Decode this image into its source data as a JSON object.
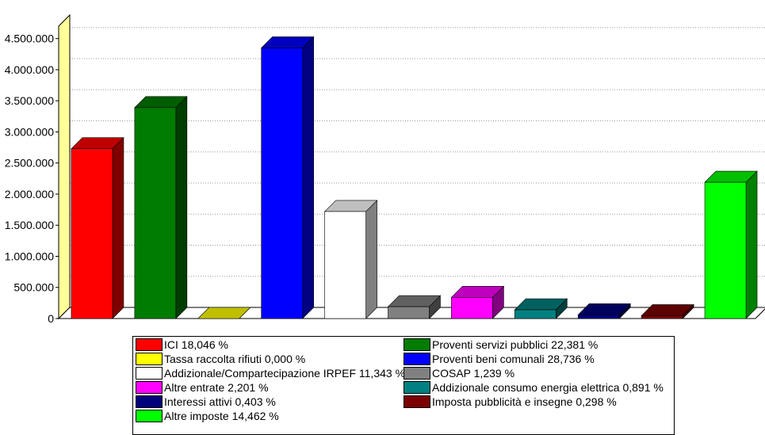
{
  "chart_data": {
    "type": "bar",
    "title": "",
    "xlabel": "",
    "ylabel": "",
    "ylim": [
      0,
      4700000
    ],
    "yticks": [
      0,
      500000,
      1000000,
      1500000,
      2000000,
      2500000,
      3000000,
      3500000,
      4000000,
      4500000
    ],
    "ytick_labels": [
      "0",
      "500.000",
      "1.000.000",
      "1.500.000",
      "2.000.000",
      "2.500.000",
      "3.000.000",
      "3.500.000",
      "4.000.000",
      "4.500.000"
    ],
    "grid": true,
    "three_d": true,
    "legend_position": "bottom",
    "categories": [
      "ICI 18,046 %",
      "Proventi servizi pubblici 22,381 %",
      "Tassa raccolta rifiuti 0,000 %",
      "Proventi beni comunali 28,736 %",
      "Addizionale/Compartecipazione IRPEF 11,343 %",
      "COSAP 1,239 %",
      "Altre entrate 2,201 %",
      "Addizionale consumo energia elettrica 0,891 %",
      "Interessi attivi 0,403 %",
      "Imposta pubblicità e insegne 0,298 %",
      "Altre imposte 14,462 %"
    ],
    "values": [
      2730000,
      3390000,
      0,
      4350000,
      1720000,
      190000,
      340000,
      140000,
      60000,
      45000,
      2190000
    ],
    "colors": [
      "#ff0000",
      "#007c00",
      "#ffff00",
      "#0000ff",
      "#ffffff",
      "#808080",
      "#ff00ff",
      "#008080",
      "#00007c",
      "#7c0000",
      "#00ff00"
    ]
  }
}
